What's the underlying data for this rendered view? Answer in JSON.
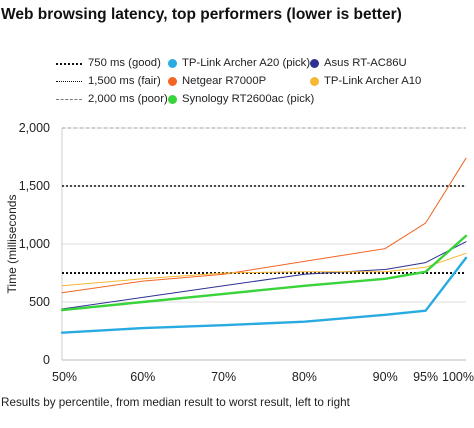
{
  "title": "Web browsing latency, top performers (lower is better)",
  "chart_data": {
    "type": "line",
    "title": "Web browsing latency, top performers (lower is better)",
    "xlabel": "Results by percentile, from median result to worst result, left to right",
    "ylabel": "Time (milliseconds",
    "x": [
      50,
      60,
      70,
      80,
      90,
      95,
      100
    ],
    "xlim": [
      50,
      100
    ],
    "ylim": [
      0,
      2000
    ],
    "x_tick_labels": [
      "50%",
      "60%",
      "70%",
      "80%",
      "90%",
      "95%",
      "100%"
    ],
    "x_tick_values": [
      50,
      60,
      70,
      80,
      90,
      95,
      100
    ],
    "y_tick_labels": [
      "0",
      "500",
      "1,000",
      "1,500",
      "2,000"
    ],
    "y_tick_values": [
      0,
      500,
      1000,
      1500,
      2000
    ],
    "grid": "horizontal",
    "legend_position": "top",
    "reference_lines": [
      {
        "name": "750 ms (good)",
        "value": 750,
        "style": "dotted-heavy",
        "color": "#111111"
      },
      {
        "name": "1,500 ms (fair)",
        "value": 1500,
        "style": "dotted",
        "color": "#111111"
      },
      {
        "name": "2,000 ms (poor)",
        "value": 2000,
        "style": "dashed-light",
        "color": "#777777"
      }
    ],
    "series": [
      {
        "name": "TP-Link Archer A20 (pick)",
        "color": "#29abe2",
        "width": 2.4,
        "values": [
          235,
          275,
          300,
          330,
          390,
          425,
          880
        ]
      },
      {
        "name": "Asus RT-AC86U",
        "color": "#2e3192",
        "width": 1,
        "values": [
          440,
          540,
          640,
          740,
          780,
          840,
          1020
        ]
      },
      {
        "name": "Netgear R7000P",
        "color": "#f26522",
        "width": 1,
        "values": [
          580,
          680,
          740,
          850,
          960,
          1180,
          1740
        ]
      },
      {
        "name": "TP-Link Archer A10",
        "color": "#f7b733",
        "width": 1,
        "values": [
          640,
          700,
          750,
          760,
          760,
          800,
          920
        ]
      },
      {
        "name": "Synology RT2600ac (pick)",
        "color": "#39d33a",
        "width": 2.4,
        "values": [
          430,
          500,
          570,
          640,
          700,
          760,
          1070
        ]
      }
    ]
  }
}
